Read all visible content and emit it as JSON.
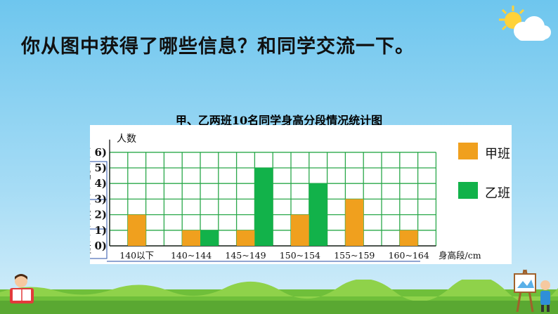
{
  "question": "你从图中获得了哪些信息？和同学交流一下。",
  "colors": {
    "jia": "#f0a01e",
    "yi": "#12b24a",
    "grid": "#2aa84a",
    "table_border": "#4d6fb8"
  },
  "chart_data": {
    "type": "bar",
    "title": "甲、乙两班10名同学身高分段情况统计图",
    "ylabel": "人数",
    "xlabel": "身高段/cm",
    "categories": [
      "140以下",
      "140~144",
      "145~149",
      "150~154",
      "155~159",
      "160~164"
    ],
    "series": [
      {
        "name": "甲班",
        "color": "#f0a01e",
        "values": [
          2,
          1,
          1,
          2,
          3,
          1
        ]
      },
      {
        "name": "乙班",
        "color": "#12b24a",
        "values": [
          0,
          1,
          5,
          4,
          0,
          0
        ]
      }
    ],
    "ylim": [
      0,
      6
    ],
    "yticks": [
      "( 0)",
      "( 1)",
      "( 2)",
      "( 3)",
      "( 4)",
      "( 5)",
      "( 6)"
    ],
    "legend_position": "right",
    "grid": true
  },
  "table_fragments": {
    "row1": "身高",
    "row1b": "段/c",
    "row2": "甲班",
    "row3": "乙班"
  }
}
